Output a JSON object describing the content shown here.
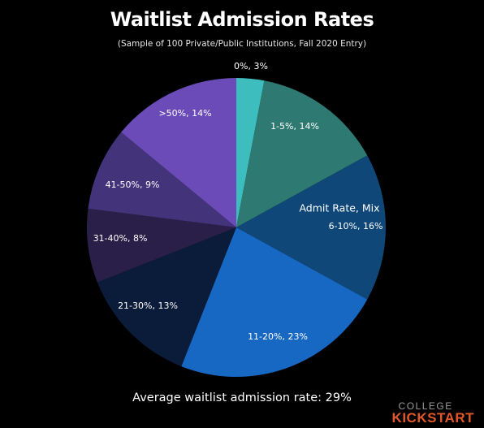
{
  "title": "Waitlist Admission Rates",
  "subtitle": "(Sample of 100 Private/Public Institutions, Fall 2020 Entry)",
  "footer": "Average waitlist admission rate: 29%",
  "logo": {
    "line1": "COLLEGE",
    "line2": "KICKSTART"
  },
  "colors": {
    "background": "#000000",
    "logo_accent": "#e2572a"
  },
  "chart_data": {
    "type": "pie",
    "title": "Waitlist Admission Rates",
    "subtitle": "(Sample of 100 Private/Public Institutions, Fall 2020 Entry)",
    "legend_title": "Admit Rate, Mix",
    "slices": [
      {
        "category": "0%",
        "value": 3,
        "label": "0%, 3%",
        "color": "#3dbdbd"
      },
      {
        "category": "1-5%",
        "value": 14,
        "label": "1-5%, 14%",
        "color": "#2e7a72"
      },
      {
        "category": "6-10%",
        "value": 16,
        "label": "6-10%, 16%",
        "color": "#0f4878"
      },
      {
        "category": "11-20%",
        "value": 23,
        "label": "11-20%, 23%",
        "color": "#1768c2"
      },
      {
        "category": "21-30%",
        "value": 13,
        "label": "21-30%, 13%",
        "color": "#0b1c3a"
      },
      {
        "category": "31-40%",
        "value": 8,
        "label": "31-40%, 8%",
        "color": "#2a1f48"
      },
      {
        "category": "41-50%",
        "value": 9,
        "label": "41-50%, 9%",
        "color": "#42337a"
      },
      {
        "category": ">50%",
        "value": 14,
        "label": ">50%, 14%",
        "color": "#6a4bb8"
      }
    ]
  }
}
